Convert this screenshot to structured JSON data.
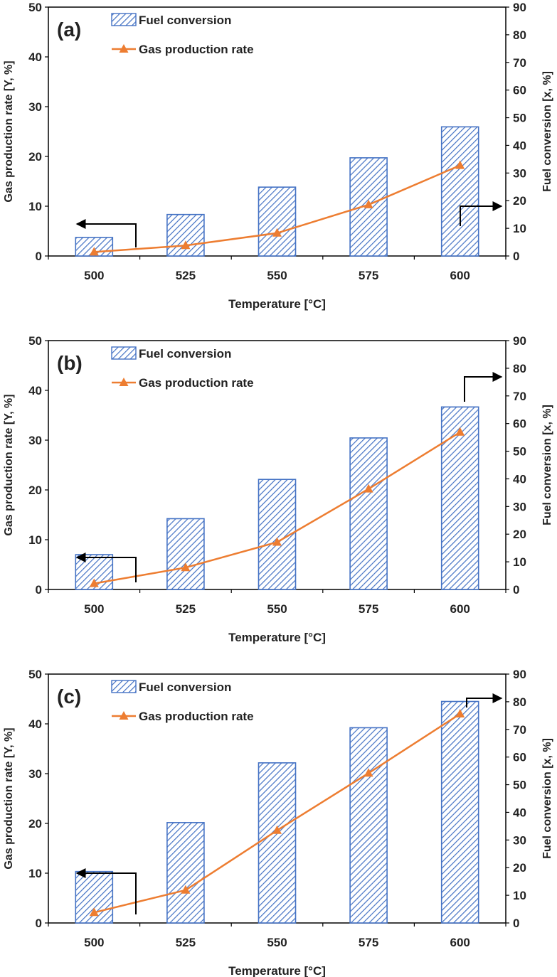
{
  "colors": {
    "bar": "#4472C4",
    "line": "#ED7D31",
    "arrow": "#000000",
    "axis": "#000000"
  },
  "chart_data": [
    {
      "panel": "(a)",
      "type": "bar+line",
      "categories": [
        "500",
        "525",
        "550",
        "575",
        "600"
      ],
      "xlabel": "Temperature [°C]",
      "ylabel_left": "Gas production rate [Y, %]",
      "ylabel_right": "Fuel conversion [x, %]",
      "ylim_left": [
        0,
        50
      ],
      "yticks_left": [
        0,
        10,
        20,
        30,
        40,
        50
      ],
      "ylim_right": [
        0,
        90
      ],
      "yticks_right": [
        0,
        10,
        20,
        30,
        40,
        50,
        60,
        70,
        80,
        90
      ],
      "series": [
        {
          "name": "Fuel conversion",
          "type": "bar",
          "axis": "right",
          "values": [
            6.7,
            15.0,
            24.9,
            35.5,
            46.7
          ]
        },
        {
          "name": "Gas production rate",
          "type": "line",
          "axis": "left",
          "values": [
            0.8,
            2.1,
            4.6,
            10.3,
            18.2
          ]
        }
      ]
    },
    {
      "panel": "(b)",
      "type": "bar+line",
      "categories": [
        "500",
        "525",
        "550",
        "575",
        "600"
      ],
      "xlabel": "Temperature [°C]",
      "ylabel_left": "Gas production rate [Y, %]",
      "ylabel_right": "Fuel conversion [x, %]",
      "ylim_left": [
        0,
        50
      ],
      "yticks_left": [
        0,
        10,
        20,
        30,
        40,
        50
      ],
      "ylim_right": [
        0,
        90
      ],
      "yticks_right": [
        0,
        10,
        20,
        30,
        40,
        50,
        60,
        70,
        80,
        90
      ],
      "series": [
        {
          "name": "Fuel conversion",
          "type": "bar",
          "axis": "right",
          "values": [
            12.6,
            25.6,
            39.8,
            54.8,
            66.0
          ]
        },
        {
          "name": "Gas production rate",
          "type": "line",
          "axis": "left",
          "values": [
            1.2,
            4.4,
            9.5,
            20.2,
            31.6
          ]
        }
      ]
    },
    {
      "panel": "(c)",
      "type": "bar+line",
      "categories": [
        "500",
        "525",
        "550",
        "575",
        "600"
      ],
      "xlabel": "Temperature [°C]",
      "ylabel_left": "Gas production rate [Y, %]",
      "ylabel_right": "Fuel conversion [x, %]",
      "ylim_left": [
        0,
        50
      ],
      "yticks_left": [
        0,
        10,
        20,
        30,
        40,
        50
      ],
      "ylim_right": [
        0,
        90
      ],
      "yticks_right": [
        0,
        10,
        20,
        30,
        40,
        50,
        60,
        70,
        80,
        90
      ],
      "series": [
        {
          "name": "Fuel conversion",
          "type": "bar",
          "axis": "right",
          "values": [
            18.6,
            36.3,
            57.9,
            70.6,
            80.1
          ]
        },
        {
          "name": "Gas production rate",
          "type": "line",
          "axis": "left",
          "values": [
            2.1,
            6.6,
            18.6,
            30.1,
            42.0
          ]
        }
      ]
    }
  ]
}
